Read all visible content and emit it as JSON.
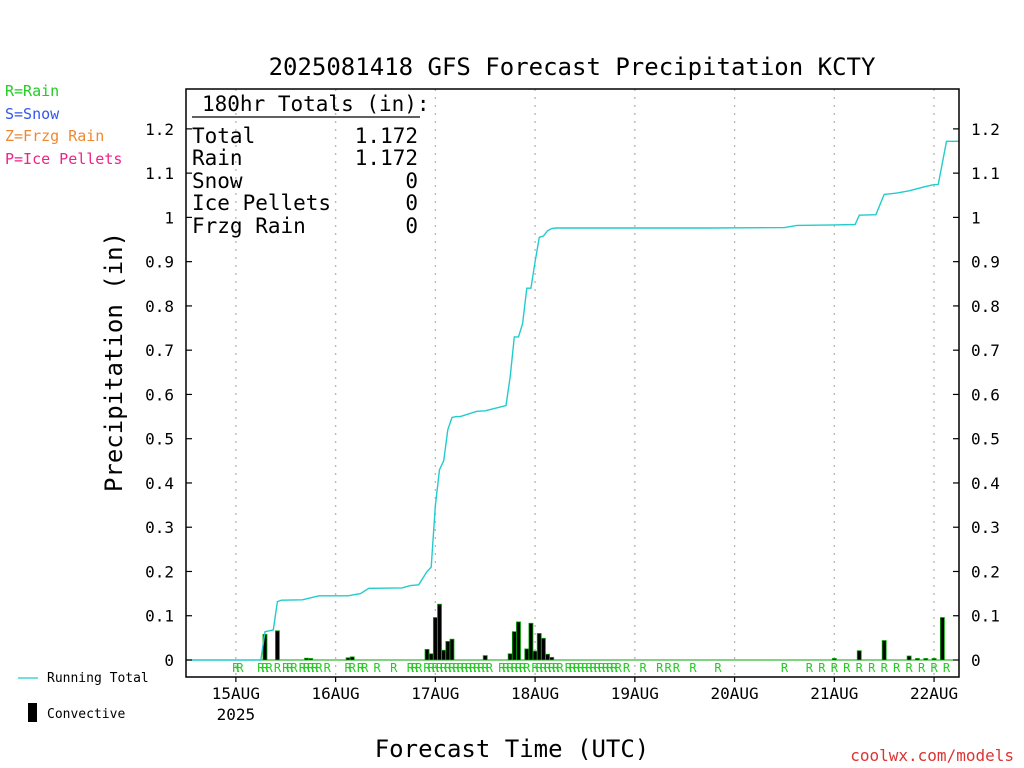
{
  "legend_types": [
    {
      "text": "R=Rain",
      "color": "#22cc22"
    },
    {
      "text": "S=Snow",
      "color": "#3355ee"
    },
    {
      "text": "Z=Frzg Rain",
      "color": "#ee8833"
    },
    {
      "text": "P=Ice Pellets",
      "color": "#ee2288"
    }
  ],
  "legend_series": {
    "running_total": "Running Total",
    "convective": "Convective"
  },
  "totals": {
    "header": "180hr Totals (in):",
    "rows": [
      {
        "label": "Total",
        "value": "1.172"
      },
      {
        "label": "Rain",
        "value": "1.172"
      },
      {
        "label": "Snow",
        "value": "0"
      },
      {
        "label": "Ice Pellets",
        "value": "0"
      },
      {
        "label": "Frzg Rain",
        "value": "0"
      }
    ]
  },
  "watermark": "coolwx.com/models",
  "colors": {
    "running_total": "#22cccc",
    "bar_fill": "#000000",
    "bar_edge": "#00aa00",
    "rain_marker": "#22cc22",
    "grid": "#bbbbbb",
    "watermark": "#dd3333"
  },
  "chart_data": {
    "type": "bar",
    "title": "2025081418 GFS Forecast Precipitation KCTY",
    "xlabel": "Forecast Time (UTC)",
    "ylabel": "Precipitation (in)",
    "ylim": [
      0,
      1.28
    ],
    "xlim_hours": [
      -6,
      180
    ],
    "x_unit": "hours after 2025-08-14 18Z",
    "yticks": [
      0,
      0.1,
      0.2,
      0.3,
      0.4,
      0.5,
      0.6,
      0.7,
      0.8,
      0.9,
      1,
      1.1,
      1.2
    ],
    "ytick_labels": [
      "0",
      "0.1",
      "0.2",
      "0.3",
      "0.4",
      "0.5",
      "0.6",
      "0.7",
      "0.8",
      "0.9",
      "1",
      "1.1",
      "1.2"
    ],
    "xticks": [
      {
        "hour": 6,
        "label": "15AUG",
        "sub": "2025"
      },
      {
        "hour": 30,
        "label": "16AUG",
        "sub": ""
      },
      {
        "hour": 54,
        "label": "17AUG",
        "sub": ""
      },
      {
        "hour": 78,
        "label": "18AUG",
        "sub": ""
      },
      {
        "hour": 102,
        "label": "19AUG",
        "sub": ""
      },
      {
        "hour": 126,
        "label": "20AUG",
        "sub": ""
      },
      {
        "hour": 150,
        "label": "21AUG",
        "sub": ""
      },
      {
        "hour": 174,
        "label": "22AUG",
        "sub": ""
      }
    ],
    "grid": "vertical dotted",
    "series": [
      {
        "name": "Running Total",
        "kind": "step-line",
        "x": [
          -6,
          12,
          13,
          15,
          16,
          17,
          22,
          26,
          33,
          36,
          38,
          46,
          48,
          50,
          52,
          53,
          54,
          55,
          56,
          57,
          58,
          59,
          60,
          64,
          66,
          71,
          72,
          73,
          74,
          75,
          76,
          77,
          78,
          79,
          80,
          81,
          82,
          83,
          84,
          86,
          90,
          100,
          120,
          138,
          141,
          150,
          155,
          156,
          160,
          162,
          165,
          168,
          172,
          174,
          175,
          177,
          180
        ],
        "y": [
          0,
          0,
          0.064,
          0.068,
          0.132,
          0.135,
          0.136,
          0.145,
          0.145,
          0.15,
          0.162,
          0.163,
          0.168,
          0.17,
          0.2,
          0.21,
          0.35,
          0.43,
          0.45,
          0.52,
          0.548,
          0.55,
          0.55,
          0.562,
          0.563,
          0.575,
          0.64,
          0.73,
          0.73,
          0.76,
          0.84,
          0.84,
          0.9,
          0.955,
          0.958,
          0.97,
          0.975,
          0.976,
          0.976,
          0.976,
          0.976,
          0.976,
          0.976,
          0.977,
          0.982,
          0.983,
          0.984,
          1.005,
          1.006,
          1.052,
          1.055,
          1.06,
          1.07,
          1.074,
          1.074,
          1.172,
          1.172
        ]
      },
      {
        "name": "Convective",
        "kind": "bar",
        "x": [
          13,
          16,
          23,
          24,
          33,
          34,
          52,
          53,
          54,
          55,
          56,
          57,
          58,
          66,
          72,
          73,
          74,
          76,
          77,
          78,
          79,
          80,
          81,
          82,
          150,
          156,
          162,
          168,
          170,
          172,
          174,
          176
        ],
        "y": [
          0.058,
          0.066,
          0.004,
          0.003,
          0.005,
          0.007,
          0.024,
          0.014,
          0.096,
          0.126,
          0.022,
          0.042,
          0.047,
          0.01,
          0.014,
          0.064,
          0.086,
          0.025,
          0.083,
          0.02,
          0.06,
          0.049,
          0.013,
          0.006,
          0.002,
          0.021,
          0.044,
          0.009,
          0.003,
          0.003,
          0.002,
          0.096
        ]
      }
    ],
    "precip_type_markers": {
      "symbol": "R",
      "hours": [
        6,
        7,
        12,
        13,
        14,
        16,
        18,
        19,
        20,
        22,
        23,
        24,
        25,
        26,
        28,
        33,
        34,
        36,
        37,
        40,
        44,
        48,
        49,
        50,
        52,
        53,
        54,
        55,
        56,
        57,
        58,
        59,
        60,
        61,
        62,
        63,
        64,
        65,
        66,
        67,
        70,
        71,
        72,
        73,
        74,
        75,
        76,
        78,
        79,
        80,
        81,
        82,
        83,
        84,
        86,
        87,
        88,
        89,
        90,
        91,
        92,
        93,
        94,
        95,
        96,
        97,
        98,
        100,
        104,
        108,
        110,
        112,
        116,
        122,
        138,
        144,
        147,
        150,
        153,
        156,
        159,
        162,
        165,
        168,
        171,
        174,
        177
      ]
    }
  }
}
